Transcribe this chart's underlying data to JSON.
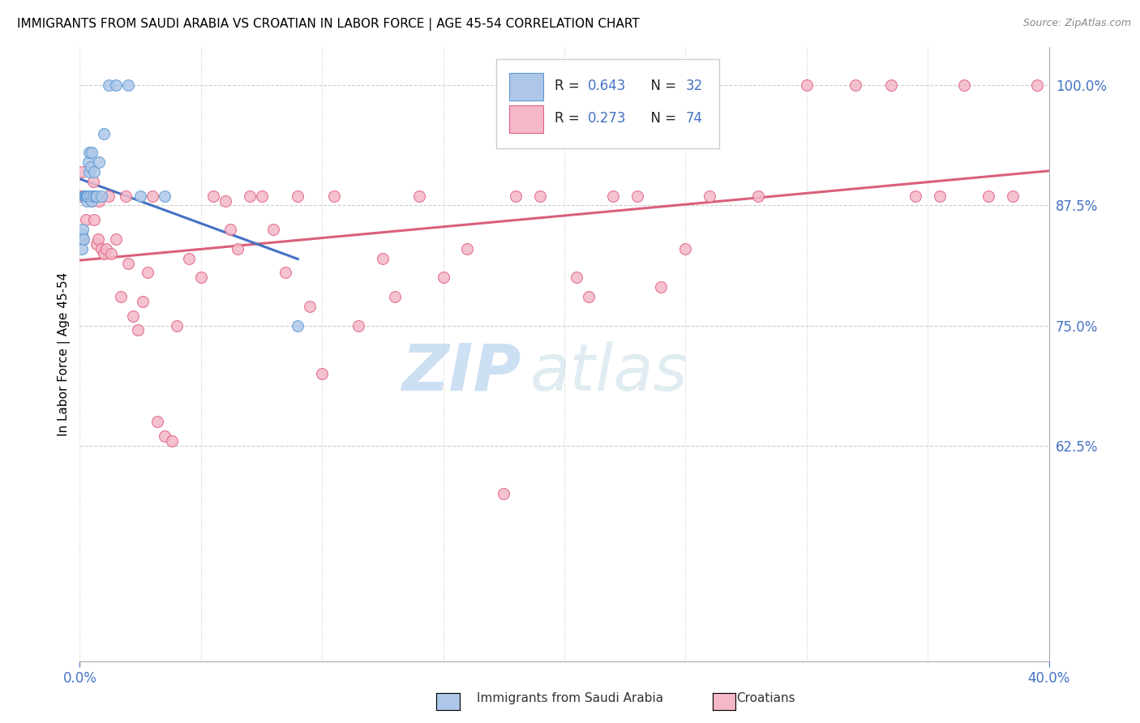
{
  "title": "IMMIGRANTS FROM SAUDI ARABIA VS CROATIAN IN LABOR FORCE | AGE 45-54 CORRELATION CHART",
  "source": "Source: ZipAtlas.com",
  "ylabel": "In Labor Force | Age 45-54",
  "xmin": 0.0,
  "xmax": 40.0,
  "ymin": 40.0,
  "ymax": 104.0,
  "right_yticks": [
    62.5,
    75.0,
    87.5,
    100.0
  ],
  "right_ytick_labels": [
    "62.5%",
    "75.0%",
    "87.5%",
    "100.0%"
  ],
  "legend_r_blue": "0.643",
  "legend_n_blue": "32",
  "legend_r_pink": "0.273",
  "legend_n_pink": "74",
  "blue_face_color": "#aec7e8",
  "blue_edge_color": "#5b9bd5",
  "pink_face_color": "#f4b8c8",
  "pink_edge_color": "#e06080",
  "blue_line_color": "#4472c4",
  "pink_line_color": "#d9607a",
  "label_blue": "Immigrants from Saudi Arabia",
  "label_pink": "Croatians",
  "axis_color": "#4472c4",
  "watermark_zip": "ZIP",
  "watermark_atlas": "atlas",
  "blue_x": [
    0.05,
    0.08,
    0.1,
    0.12,
    0.15,
    0.18,
    0.2,
    0.22,
    0.25,
    0.28,
    0.3,
    0.32,
    0.35,
    0.38,
    0.4,
    0.42,
    0.45,
    0.48,
    0.5,
    0.55,
    0.6,
    0.65,
    0.7,
    0.8,
    0.9,
    1.0,
    1.2,
    1.5,
    2.0,
    2.5,
    3.5,
    9.0
  ],
  "blue_y": [
    84.0,
    83.0,
    84.5,
    85.0,
    84.0,
    88.5,
    88.5,
    88.5,
    88.5,
    88.0,
    88.5,
    88.5,
    92.0,
    91.0,
    93.0,
    88.5,
    91.5,
    88.0,
    93.0,
    88.5,
    91.0,
    88.5,
    88.5,
    92.0,
    88.5,
    95.0,
    100.0,
    100.0,
    100.0,
    88.5,
    88.5,
    75.0
  ],
  "pink_x": [
    0.05,
    0.1,
    0.15,
    0.2,
    0.25,
    0.3,
    0.35,
    0.4,
    0.45,
    0.5,
    0.55,
    0.6,
    0.65,
    0.7,
    0.75,
    0.8,
    0.9,
    1.0,
    1.1,
    1.2,
    1.3,
    1.5,
    1.7,
    1.9,
    2.0,
    2.2,
    2.4,
    2.6,
    2.8,
    3.0,
    3.2,
    3.5,
    3.8,
    4.0,
    4.5,
    5.0,
    5.5,
    6.0,
    6.5,
    7.0,
    7.5,
    8.0,
    8.5,
    9.0,
    9.5,
    10.5,
    11.5,
    12.5,
    14.0,
    16.0,
    17.5,
    19.0,
    20.5,
    22.0,
    24.0,
    26.0,
    28.0,
    30.0,
    32.0,
    33.5,
    34.5,
    35.5,
    36.5,
    37.5,
    38.5,
    39.5,
    6.2,
    10.0,
    13.0,
    15.0,
    18.0,
    21.0,
    23.0,
    25.0
  ],
  "pink_y": [
    88.5,
    91.0,
    84.0,
    88.5,
    86.0,
    88.5,
    88.5,
    88.5,
    88.5,
    88.0,
    90.0,
    86.0,
    88.5,
    83.5,
    84.0,
    88.0,
    83.0,
    82.5,
    83.0,
    88.5,
    82.5,
    84.0,
    78.0,
    88.5,
    81.5,
    76.0,
    74.5,
    77.5,
    80.5,
    88.5,
    65.0,
    63.5,
    63.0,
    75.0,
    82.0,
    80.0,
    88.5,
    88.0,
    83.0,
    88.5,
    88.5,
    85.0,
    80.5,
    88.5,
    77.0,
    88.5,
    75.0,
    82.0,
    88.5,
    83.0,
    57.5,
    88.5,
    80.0,
    88.5,
    79.0,
    88.5,
    88.5,
    100.0,
    100.0,
    100.0,
    88.5,
    88.5,
    100.0,
    88.5,
    88.5,
    100.0,
    85.0,
    70.0,
    78.0,
    80.0,
    88.5,
    78.0,
    88.5,
    83.0
  ]
}
